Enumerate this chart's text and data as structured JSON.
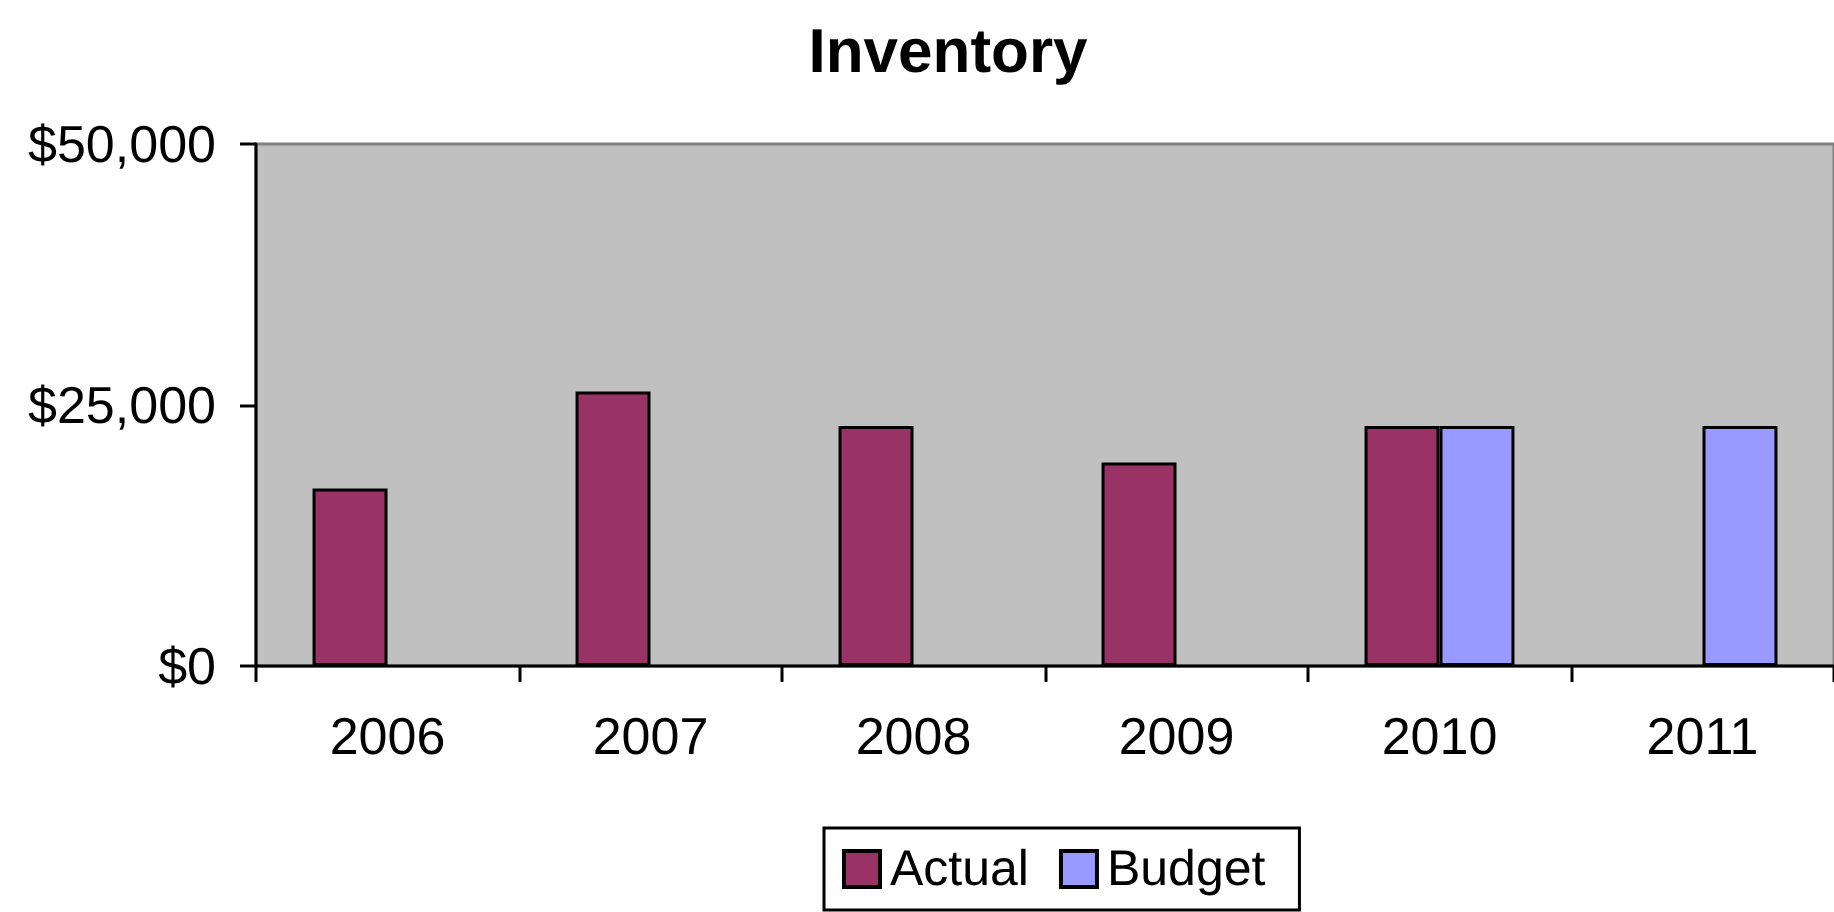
{
  "chart_data": {
    "type": "bar",
    "title": "Inventory",
    "categories": [
      "2006",
      "2007",
      "2008",
      "2009",
      "2010",
      "2011"
    ],
    "series": [
      {
        "name": "Actual",
        "color": "#993366",
        "values": [
          17000,
          26300,
          23000,
          19500,
          23000,
          null
        ]
      },
      {
        "name": "Budget",
        "color": "#9999ff",
        "values": [
          null,
          null,
          null,
          null,
          23000,
          23000
        ]
      }
    ],
    "ylim": [
      0,
      50000
    ],
    "yticks": [
      {
        "value": 0,
        "label": "$0"
      },
      {
        "value": 25000,
        "label": "$25,000"
      },
      {
        "value": 50000,
        "label": "$50,000"
      }
    ],
    "grid": false,
    "legend": "bottom"
  }
}
